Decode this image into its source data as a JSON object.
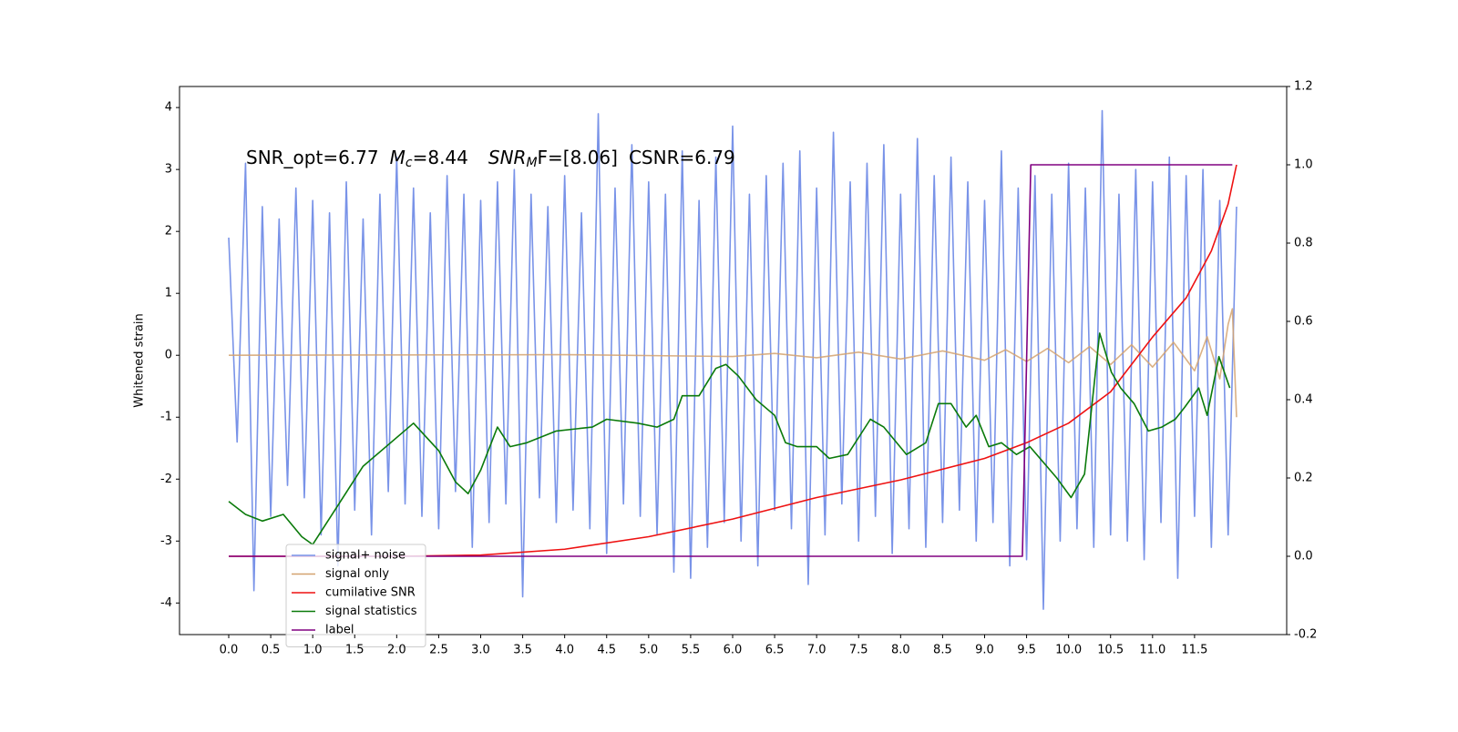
{
  "chart_data": {
    "type": "line",
    "annotation": [
      "SNR_opt=6.77",
      "M",
      "c",
      "=8.44",
      "SNR",
      "M",
      "F=[8.06]",
      "CSNR=6.79"
    ],
    "ylabel": "Whitened strain",
    "xlim": [
      -0.586,
      12.597
    ],
    "ylim": [
      -4.51,
      4.34
    ],
    "y2lim": [
      -0.2,
      1.2
    ],
    "xticks": [
      {
        "value": 0,
        "label": "0.0"
      },
      0.5,
      {
        "value": 1,
        "label": "1.0"
      },
      1.5,
      {
        "value": 2,
        "label": "2.0"
      },
      2.5,
      {
        "value": 3,
        "label": "3.0"
      },
      3.5,
      {
        "value": 4,
        "label": "4.0"
      },
      4.5,
      {
        "value": 5,
        "label": "5.0"
      },
      5.5,
      {
        "value": 6,
        "label": "6.0"
      },
      6.5,
      {
        "value": 7,
        "label": "7.0"
      },
      7.5,
      {
        "value": 8,
        "label": "8.0"
      },
      8.5,
      {
        "value": 9,
        "label": "9.0"
      },
      9.5,
      {
        "value": 10,
        "label": "10.0"
      },
      10.5,
      {
        "value": 11,
        "label": "11.0"
      },
      11.5
    ],
    "yticks": [
      -4,
      -3,
      -2,
      -1,
      0,
      1,
      2,
      3,
      4
    ],
    "y2ticks": [
      -0.2,
      {
        "value": 0,
        "label": "0.0"
      },
      0.2,
      0.4,
      0.6,
      0.8,
      {
        "value": 1,
        "label": "1.0"
      },
      1.2
    ],
    "legend": "lower left",
    "series": [
      {
        "name": "signal+ noise",
        "color": "#7993e8",
        "axis": "y",
        "x": [
          0,
          0.1,
          0.2,
          0.3,
          0.4,
          0.5,
          0.6,
          0.7,
          0.8,
          0.9,
          1,
          1.1,
          1.2,
          1.3,
          1.4,
          1.5,
          1.6,
          1.7,
          1.8,
          1.9,
          2,
          2.1,
          2.2,
          2.3,
          2.4,
          2.5,
          2.6,
          2.7,
          2.8,
          2.9,
          3,
          3.1,
          3.2,
          3.3,
          3.4,
          3.5,
          3.6,
          3.7,
          3.8,
          3.9,
          4,
          4.1,
          4.2,
          4.3,
          4.4,
          4.5,
          4.6,
          4.7,
          4.8,
          4.9,
          5,
          5.1,
          5.2,
          5.3,
          5.4,
          5.5,
          5.6,
          5.7,
          5.8,
          5.9,
          6,
          6.1,
          6.2,
          6.3,
          6.4,
          6.5,
          6.6,
          6.7,
          6.8,
          6.9,
          7,
          7.1,
          7.2,
          7.3,
          7.4,
          7.5,
          7.6,
          7.7,
          7.8,
          7.9,
          8,
          8.1,
          8.2,
          8.3,
          8.4,
          8.5,
          8.6,
          8.7,
          8.8,
          8.9,
          9,
          9.1,
          9.2,
          9.3,
          9.4,
          9.5,
          9.6,
          9.7,
          9.8,
          9.9,
          10,
          10.1,
          10.2,
          10.3,
          10.4,
          10.5,
          10.6,
          10.7,
          10.8,
          10.9,
          11,
          11.1,
          11.2,
          11.3,
          11.4,
          11.5,
          11.6,
          11.7,
          11.8,
          11.9,
          12
        ],
        "values": [
          1.9,
          -1.4,
          3.1,
          -3.8,
          2.4,
          -2.6,
          2.2,
          -2.1,
          2.7,
          -2.3,
          2.5,
          -2.9,
          2.3,
          -3.4,
          2.8,
          -2.5,
          2.2,
          -2.9,
          2.6,
          -2.2,
          3.2,
          -2.4,
          2.7,
          -2.6,
          2.3,
          -2.8,
          2.9,
          -2.2,
          2.6,
          -3.1,
          2.5,
          -2.7,
          2.8,
          -2.4,
          3.0,
          -3.9,
          2.6,
          -2.3,
          2.4,
          -2.7,
          2.9,
          -2.5,
          2.3,
          -2.8,
          3.9,
          -3.2,
          2.7,
          -2.4,
          3.4,
          -2.6,
          2.8,
          -2.9,
          2.6,
          -3.5,
          3.3,
          -3.6,
          2.5,
          -3.1,
          3.2,
          -2.7,
          3.7,
          -3.0,
          2.6,
          -3.4,
          2.9,
          -2.5,
          3.1,
          -2.8,
          3.3,
          -3.7,
          2.7,
          -2.9,
          3.6,
          -2.4,
          2.8,
          -3.0,
          3.1,
          -2.6,
          3.4,
          -3.2,
          2.6,
          -2.8,
          3.5,
          -3.1,
          2.9,
          -2.7,
          3.2,
          -2.5,
          2.8,
          -3.0,
          2.5,
          -2.7,
          3.3,
          -3.4,
          2.7,
          -3.3,
          2.9,
          -4.1,
          2.6,
          -3.0,
          3.1,
          -2.8,
          2.7,
          -3.1,
          3.95,
          -2.9,
          2.6,
          -3.0,
          3.0,
          -3.3,
          2.8,
          -2.7,
          3.2,
          -3.6,
          2.9,
          -2.6,
          3.0,
          -3.1,
          2.5,
          -2.9,
          2.4
        ]
      },
      {
        "name": "signal only",
        "color": "#d4a26f",
        "axis": "y",
        "x": [
          0,
          4,
          6,
          6.5,
          7,
          7.5,
          8,
          8.5,
          9,
          9.25,
          9.5,
          9.75,
          10,
          10.25,
          10.5,
          10.75,
          11,
          11.25,
          11.5,
          11.65,
          11.8,
          11.9,
          11.95,
          12
        ],
        "values": [
          0,
          0.01,
          -0.02,
          0.03,
          -0.04,
          0.05,
          -0.06,
          0.07,
          -0.08,
          0.09,
          -0.1,
          0.11,
          -0.12,
          0.14,
          -0.15,
          0.17,
          -0.19,
          0.21,
          -0.25,
          0.3,
          -0.38,
          0.5,
          0.75,
          -1.0
        ]
      },
      {
        "name": "cumilative SNR",
        "color": "#ee1111",
        "axis": "y2",
        "x": [
          0,
          2,
          3,
          4,
          5,
          6,
          7,
          8,
          9,
          9.5,
          10,
          10.5,
          11,
          11.4,
          11.7,
          11.9,
          12
        ],
        "values": [
          0,
          0,
          0.003,
          0.018,
          0.05,
          0.095,
          0.15,
          0.195,
          0.25,
          0.29,
          0.34,
          0.42,
          0.56,
          0.66,
          0.78,
          0.9,
          1.0
        ]
      },
      {
        "name": "signal statistics",
        "color": "#0a7a0a",
        "axis": "y2",
        "x": [
          0,
          0.2,
          0.4,
          0.65,
          0.87,
          1.0,
          1.6,
          2.2,
          2.5,
          2.7,
          2.85,
          3.0,
          3.2,
          3.35,
          3.55,
          3.9,
          4.33,
          4.5,
          4.87,
          5.1,
          5.3,
          5.4,
          5.6,
          5.8,
          5.92,
          6.07,
          6.28,
          6.5,
          6.63,
          6.77,
          7.0,
          7.15,
          7.37,
          7.64,
          7.8,
          8.07,
          8.3,
          8.45,
          8.6,
          8.78,
          8.9,
          9.05,
          9.2,
          9.38,
          9.54,
          9.86,
          10.03,
          10.19,
          10.37,
          10.51,
          10.62,
          10.78,
          10.95,
          11.11,
          11.27,
          11.38,
          11.55,
          11.65,
          11.79,
          11.92
        ],
        "values": [
          0.14,
          0.107,
          0.09,
          0.107,
          0.05,
          0.03,
          0.23,
          0.34,
          0.27,
          0.19,
          0.16,
          0.22,
          0.33,
          0.28,
          0.29,
          0.32,
          0.33,
          0.35,
          0.34,
          0.33,
          0.35,
          0.41,
          0.41,
          0.48,
          0.49,
          0.46,
          0.4,
          0.36,
          0.29,
          0.28,
          0.28,
          0.25,
          0.26,
          0.35,
          0.33,
          0.26,
          0.29,
          0.39,
          0.39,
          0.33,
          0.36,
          0.28,
          0.29,
          0.26,
          0.28,
          0.2,
          0.15,
          0.21,
          0.57,
          0.47,
          0.43,
          0.39,
          0.32,
          0.33,
          0.35,
          0.38,
          0.43,
          0.36,
          0.51,
          0.43
        ]
      },
      {
        "name": "label",
        "color": "#800080",
        "axis": "y2",
        "x": [
          0,
          9.45,
          9.55,
          11.95
        ],
        "values": [
          0,
          0,
          1,
          1
        ]
      }
    ]
  }
}
